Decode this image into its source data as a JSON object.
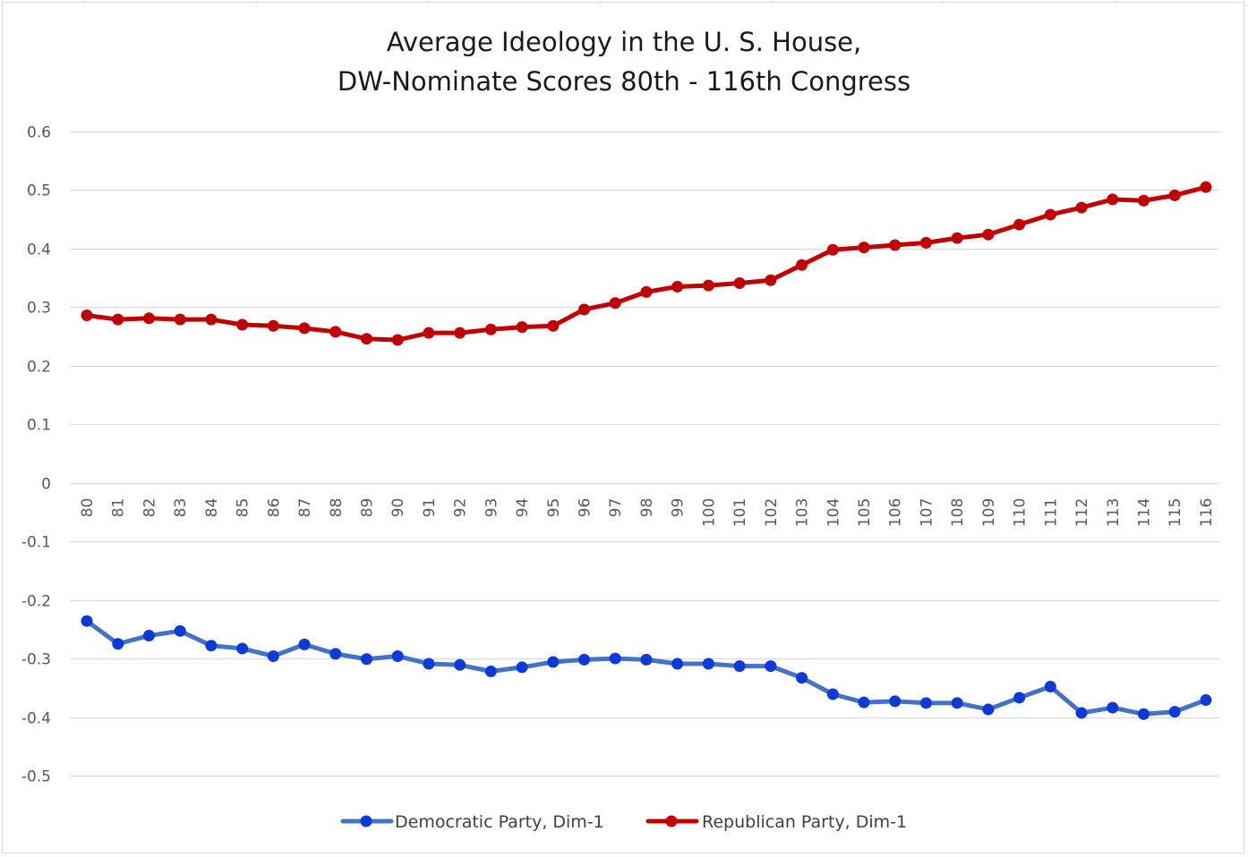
{
  "chart_data": {
    "type": "line",
    "title": [
      "Average Ideology in the U. S. House,",
      "DW-Nominate Scores 80th - 116th Congress"
    ],
    "xlabel": "",
    "ylabel": "",
    "categories": [
      "80",
      "81",
      "82",
      "83",
      "84",
      "85",
      "86",
      "87",
      "88",
      "89",
      "90",
      "91",
      "92",
      "93",
      "94",
      "95",
      "96",
      "97",
      "98",
      "99",
      "100",
      "101",
      "102",
      "103",
      "104",
      "105",
      "106",
      "107",
      "108",
      "109",
      "110",
      "111",
      "112",
      "113",
      "114",
      "115",
      "116"
    ],
    "ylim": [
      -0.5,
      0.6
    ],
    "yticks": [
      0.6,
      0.5,
      0.4,
      0.3,
      0.2,
      0.1,
      0,
      -0.1,
      -0.2,
      -0.3,
      -0.4,
      -0.5
    ],
    "ytick_labels": [
      "0.6",
      "0.5",
      "0.4",
      "0.3",
      "0.2",
      "0.1",
      "0",
      "-0.1",
      "-0.2",
      "-0.3",
      "-0.4",
      "-0.5"
    ],
    "grid": true,
    "legend_position": "bottom",
    "series": [
      {
        "name": "Democratic Party, Dim-1",
        "color": "#4472c4",
        "marker_color": "#0b3bd6",
        "values": [
          -0.236,
          -0.275,
          -0.261,
          -0.253,
          -0.278,
          -0.283,
          -0.296,
          -0.276,
          -0.292,
          -0.301,
          -0.296,
          -0.309,
          -0.311,
          -0.322,
          -0.315,
          -0.306,
          -0.302,
          -0.3,
          -0.302,
          -0.309,
          -0.309,
          -0.313,
          -0.313,
          -0.333,
          -0.361,
          -0.375,
          -0.373,
          -0.376,
          -0.376,
          -0.387,
          -0.367,
          -0.348,
          -0.393,
          -0.384,
          -0.395,
          -0.391,
          -0.371
        ]
      },
      {
        "name": "Republican Party, Dim-1",
        "color": "#c00000",
        "marker_color": "#c00000",
        "values": [
          0.286,
          0.279,
          0.281,
          0.279,
          0.279,
          0.27,
          0.268,
          0.264,
          0.258,
          0.246,
          0.244,
          0.256,
          0.256,
          0.262,
          0.266,
          0.268,
          0.296,
          0.307,
          0.326,
          0.335,
          0.337,
          0.341,
          0.346,
          0.372,
          0.398,
          0.402,
          0.406,
          0.41,
          0.418,
          0.424,
          0.441,
          0.458,
          0.47,
          0.484,
          0.482,
          0.491,
          0.505
        ]
      }
    ]
  }
}
